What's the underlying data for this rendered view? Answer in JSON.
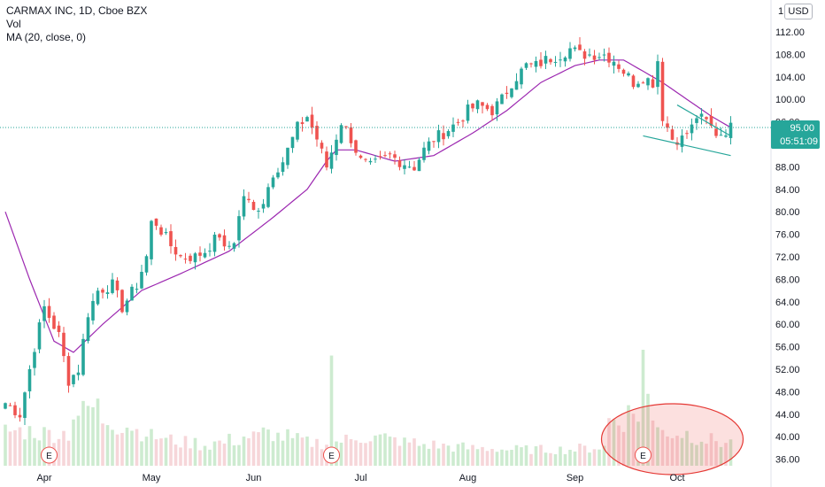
{
  "legend": {
    "title": "CARMAX INC, 1D, Cboe BZX",
    "vol": "Vol",
    "ma": "MA (20, close, 0)"
  },
  "scale_buttons": {
    "one": "1",
    "currency": "USD"
  },
  "price_badge": {
    "value": "95.00",
    "countdown": "05:51:09"
  },
  "earnings_marker": "E",
  "colors": {
    "up": "#26a69a",
    "down": "#ef5350",
    "ma": "#9c27b0",
    "vol_up": "#cdebd0",
    "vol_down": "#f6d6d9",
    "trendline": "#26a69a",
    "annotation": "#e53935",
    "badge": "#26a69a"
  },
  "chart_data": {
    "type": "candlestick",
    "title": "CARMAX INC, 1D, Cboe BZX",
    "x_ticks": [
      "Apr",
      "May",
      "Jun",
      "Jul",
      "Aug",
      "Sep",
      "Oct"
    ],
    "y_ticks": [
      "112.00",
      "108.00",
      "104.00",
      "100.00",
      "96.00",
      "92.00",
      "88.00",
      "84.00",
      "80.00",
      "76.00",
      "72.00",
      "68.00",
      "64.00",
      "60.00",
      "56.00",
      "52.00",
      "48.00",
      "44.00",
      "40.00",
      "36.00"
    ],
    "ylim": [
      35,
      115
    ],
    "close_path": [
      [
        0,
        46
      ],
      [
        3,
        44
      ],
      [
        6,
        56
      ],
      [
        8,
        63
      ],
      [
        11,
        58
      ],
      [
        13,
        50
      ],
      [
        15,
        52
      ],
      [
        17,
        62
      ],
      [
        19,
        66
      ],
      [
        22,
        67
      ],
      [
        24,
        63
      ],
      [
        27,
        67
      ],
      [
        29,
        72
      ],
      [
        30,
        78
      ],
      [
        31,
        78
      ],
      [
        34,
        74
      ],
      [
        36,
        72
      ],
      [
        39,
        72
      ],
      [
        41,
        73
      ],
      [
        44,
        76
      ],
      [
        45,
        73
      ],
      [
        47,
        75
      ],
      [
        49,
        83
      ],
      [
        51,
        80
      ],
      [
        53,
        82
      ],
      [
        55,
        87
      ],
      [
        57,
        89
      ],
      [
        60,
        95
      ],
      [
        62,
        97
      ],
      [
        64,
        93
      ],
      [
        66,
        88
      ],
      [
        69,
        96
      ],
      [
        71,
        93
      ],
      [
        73,
        89
      ],
      [
        75,
        88
      ],
      [
        77,
        89
      ],
      [
        79,
        90
      ],
      [
        81,
        89
      ],
      [
        84,
        88
      ],
      [
        86,
        91
      ],
      [
        88,
        93
      ],
      [
        90,
        94
      ],
      [
        93,
        96
      ],
      [
        95,
        98
      ],
      [
        97,
        99
      ],
      [
        100,
        98
      ],
      [
        102,
        100
      ],
      [
        104,
        103
      ],
      [
        107,
        106
      ],
      [
        109,
        106
      ],
      [
        111,
        107
      ],
      [
        114,
        108
      ],
      [
        116,
        109
      ],
      [
        118,
        108
      ],
      [
        120,
        108
      ],
      [
        123,
        108
      ],
      [
        125,
        107
      ],
      [
        127,
        105
      ],
      [
        129,
        103
      ],
      [
        131,
        104
      ],
      [
        133,
        103
      ],
      [
        134,
        107
      ],
      [
        135,
        97
      ],
      [
        137,
        93
      ],
      [
        139,
        93
      ],
      [
        141,
        95
      ],
      [
        142,
        97
      ],
      [
        144,
        96
      ],
      [
        146,
        94
      ],
      [
        147,
        94
      ],
      [
        149,
        95
      ]
    ],
    "ma_path": [
      [
        0,
        80
      ],
      [
        5,
        68
      ],
      [
        10,
        57
      ],
      [
        14,
        55
      ],
      [
        20,
        60
      ],
      [
        28,
        66
      ],
      [
        36,
        69
      ],
      [
        46,
        73
      ],
      [
        55,
        79
      ],
      [
        62,
        84
      ],
      [
        66,
        89
      ],
      [
        68,
        91
      ],
      [
        72,
        91
      ],
      [
        80,
        89
      ],
      [
        88,
        90
      ],
      [
        96,
        94
      ],
      [
        103,
        98
      ],
      [
        110,
        103
      ],
      [
        117,
        106
      ],
      [
        122,
        107
      ],
      [
        127,
        107
      ],
      [
        131,
        105
      ],
      [
        135,
        103
      ],
      [
        140,
        100
      ],
      [
        145,
        97
      ],
      [
        149,
        95
      ]
    ],
    "volume_scale_max": 100,
    "volume_base": [
      30,
      30,
      28,
      28,
      45,
      50,
      40,
      35,
      30,
      25,
      22,
      20,
      18,
      20,
      22,
      25,
      28,
      25,
      22,
      20,
      20,
      22,
      25,
      24,
      22,
      20,
      18,
      17,
      16,
      15,
      15,
      14,
      14,
      14,
      14,
      14,
      15,
      16,
      40,
      45,
      38,
      30,
      28,
      25,
      22,
      20
    ],
    "volume_spikes": [
      [
        67,
        95
      ],
      [
        131,
        100
      ],
      [
        132,
        62
      ]
    ],
    "earnings_bars": [
      9,
      67,
      131
    ],
    "trendlines": [
      {
        "from": [
          131,
          93.5
        ],
        "to": [
          149,
          90.0
        ]
      },
      {
        "from": [
          138,
          99.0
        ],
        "to": [
          149,
          93.5
        ]
      }
    ],
    "annotation": "ellipse around the October volume bars",
    "last_price": 95.0
  }
}
